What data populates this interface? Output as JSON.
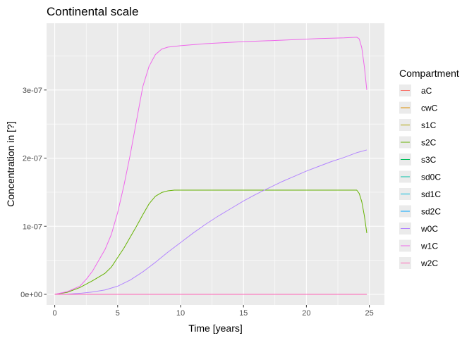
{
  "chart_data": {
    "type": "line",
    "title": "Continental scale",
    "xlabel": "Time [years]",
    "ylabel": "Concentration in [?]",
    "xlim": [
      -0.65,
      26.2
    ],
    "ylim": [
      -1.55e-08,
      3.98e-07
    ],
    "x_ticks": [
      0,
      5,
      10,
      15,
      20,
      25
    ],
    "x_tick_labels": [
      "0",
      "5",
      "10",
      "15",
      "20",
      "25"
    ],
    "y_ticks": [
      0,
      1e-07,
      2e-07,
      3e-07
    ],
    "y_tick_labels": [
      "0e+00",
      "1e-07",
      "2e-07",
      "3e-07"
    ],
    "grid": true,
    "legend": {
      "title": "Compartment",
      "position": "right"
    },
    "series": [
      {
        "name": "aC",
        "color": "#F8766D",
        "x": [
          0,
          24.8
        ],
        "y": [
          0,
          0
        ]
      },
      {
        "name": "cwC",
        "color": "#DB8E00",
        "x": [
          0,
          24.8
        ],
        "y": [
          0,
          0
        ]
      },
      {
        "name": "s1C",
        "color": "#AEA200",
        "x": [
          0,
          24.8
        ],
        "y": [
          0,
          0
        ]
      },
      {
        "name": "s2C",
        "color": "#64B200",
        "x": [
          0,
          1,
          2,
          3,
          4,
          4.5,
          5,
          5.5,
          6,
          6.5,
          7,
          7.5,
          8,
          8.5,
          9,
          9.5,
          10,
          12,
          15,
          18,
          21,
          23,
          24,
          24.2,
          24.4,
          24.6,
          24.8
        ],
        "y": [
          0,
          3e-09,
          1e-08,
          2e-08,
          3.1e-08,
          4e-08,
          5.4e-08,
          6.8e-08,
          8.4e-08,
          1e-07,
          1.17e-07,
          1.33e-07,
          1.44e-07,
          1.495e-07,
          1.52e-07,
          1.53e-07,
          1.53e-07,
          1.53e-07,
          1.53e-07,
          1.53e-07,
          1.53e-07,
          1.53e-07,
          1.53e-07,
          1.48e-07,
          1.36e-07,
          1.16e-07,
          9e-08
        ]
      },
      {
        "name": "s3C",
        "color": "#00BD5C",
        "x": [
          0,
          24.8
        ],
        "y": [
          0,
          0
        ]
      },
      {
        "name": "sd0C",
        "color": "#00C1A7",
        "x": [
          0,
          24.8
        ],
        "y": [
          0,
          0
        ]
      },
      {
        "name": "sd1C",
        "color": "#00BADE",
        "x": [
          0,
          24.8
        ],
        "y": [
          0,
          0
        ]
      },
      {
        "name": "sd2C",
        "color": "#00A6FF",
        "x": [
          6.7,
          24.8
        ],
        "y": [
          0,
          0
        ]
      },
      {
        "name": "w0C",
        "color": "#B385FF",
        "x": [
          0,
          1,
          2,
          3,
          4,
          5,
          6,
          7,
          8,
          9,
          10,
          11,
          12,
          13,
          14,
          15,
          16,
          17,
          18,
          19,
          20,
          21,
          22,
          23,
          24,
          24.8
        ],
        "y": [
          0,
          3e-10,
          1.5e-09,
          3.5e-09,
          6.5e-09,
          1.2e-08,
          2.1e-08,
          3.3e-08,
          4.7e-08,
          6.2e-08,
          7.6e-08,
          9e-08,
          1.03e-07,
          1.15e-07,
          1.26e-07,
          1.37e-07,
          1.47e-07,
          1.56e-07,
          1.65e-07,
          1.73e-07,
          1.81e-07,
          1.88e-07,
          1.95e-07,
          2.01e-07,
          2.08e-07,
          2.12e-07
        ]
      },
      {
        "name": "w1C",
        "color": "#EF67EB",
        "x": [
          0,
          1,
          2,
          2.5,
          3,
          3.5,
          4,
          4.5,
          5,
          5.5,
          6,
          6.5,
          7,
          7.5,
          8,
          8.5,
          9,
          9.5,
          10,
          12,
          15,
          18,
          21,
          23,
          24,
          24.2,
          24.4,
          24.6,
          24.8
        ],
        "y": [
          0,
          4e-09,
          1.2e-08,
          2.2e-08,
          3.4e-08,
          5e-08,
          6.6e-08,
          8.8e-08,
          1.2e-07,
          1.6e-07,
          2.05e-07,
          2.55e-07,
          3.05e-07,
          3.35e-07,
          3.52e-07,
          3.6e-07,
          3.63e-07,
          3.64e-07,
          3.65e-07,
          3.68e-07,
          3.71e-07,
          3.73e-07,
          3.755e-07,
          3.765e-07,
          3.775e-07,
          3.75e-07,
          3.62e-07,
          3.35e-07,
          3e-07
        ]
      },
      {
        "name": "w2C",
        "color": "#FF63B6",
        "x": [
          0,
          24.8
        ],
        "y": [
          0,
          0
        ]
      }
    ]
  }
}
